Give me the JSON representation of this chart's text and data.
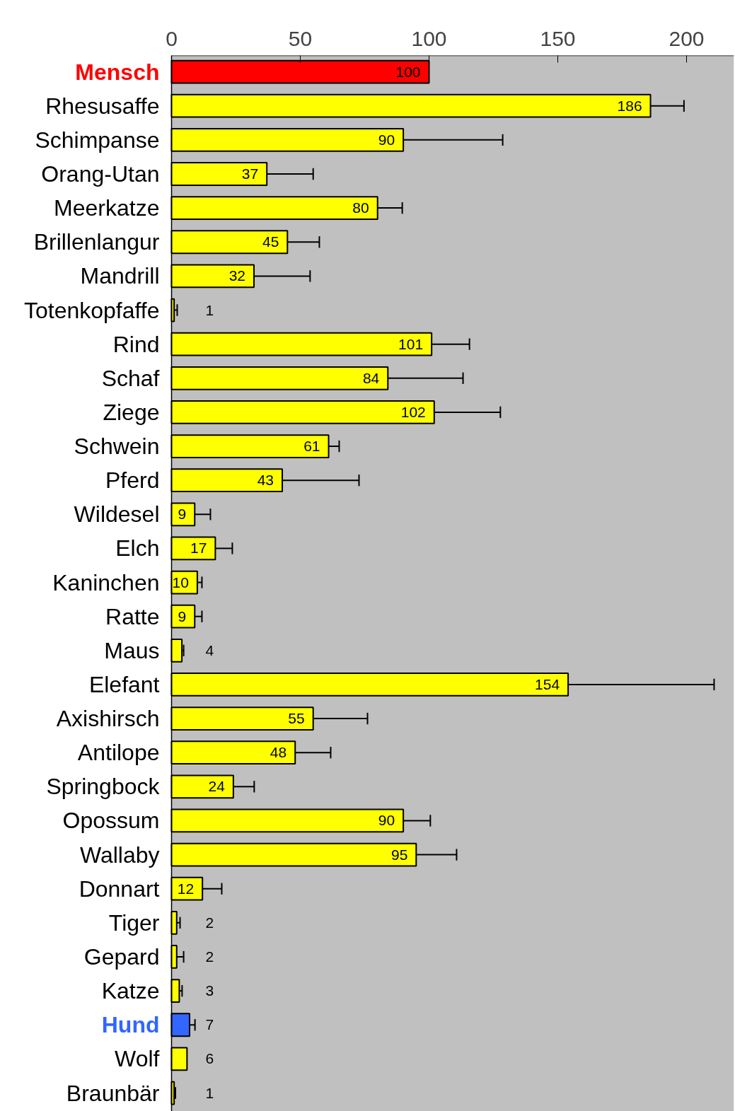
{
  "chart_data": {
    "type": "bar",
    "orientation": "horizontal",
    "categories": [
      "Mensch",
      "Rhesusaffe",
      "Schimpanse",
      "Orang-Utan",
      "Meerkatze",
      "Brillenlangur",
      "Mandrill",
      "Totenkopfaffe",
      "Rind",
      "Schaf",
      "Ziege",
      "Schwein",
      "Pferd",
      "Wildesel",
      "Elch",
      "Kaninchen",
      "Ratte",
      "Maus",
      "Elefant",
      "Axishirsch",
      "Antilope",
      "Springbock",
      "Opossum",
      "Wallaby",
      "Donnart",
      "Tiger",
      "Gepard",
      "Katze",
      "Hund",
      "Wolf",
      "Braunbär"
    ],
    "values": [
      100,
      186,
      90,
      37,
      80,
      45,
      32,
      1,
      101,
      84,
      102,
      61,
      43,
      9,
      17,
      10,
      9,
      4,
      154,
      55,
      48,
      24,
      90,
      95,
      12,
      2,
      2,
      3,
      7,
      6,
      1
    ],
    "colors": [
      "#ff0000",
      "#ffff00",
      "#ffff00",
      "#ffff00",
      "#ffff00",
      "#ffff00",
      "#ffff00",
      "#ffff00",
      "#ffff00",
      "#ffff00",
      "#ffff00",
      "#ffff00",
      "#ffff00",
      "#ffff00",
      "#ffff00",
      "#ffff00",
      "#ffff00",
      "#ffff00",
      "#ffff00",
      "#ffff00",
      "#ffff00",
      "#ffff00",
      "#ffff00",
      "#ffff00",
      "#ffff00",
      "#ffff00",
      "#ffff00",
      "#ffff00",
      "#3366ff",
      "#ffff00",
      "#ffff00"
    ],
    "errors": [
      null,
      [
        186,
        199
      ],
      [
        90,
        128.6
      ],
      [
        37,
        55
      ],
      [
        80,
        89.6
      ],
      [
        45,
        57.4
      ],
      [
        32,
        53.8
      ],
      [
        1,
        2.2
      ],
      [
        101,
        115.7
      ],
      [
        84,
        113.2
      ],
      [
        102,
        127.7
      ],
      [
        61,
        65.1
      ],
      [
        43,
        72.8
      ],
      [
        9,
        15.1
      ],
      [
        17,
        23.6
      ],
      [
        10,
        11.8
      ],
      [
        9,
        11.8
      ],
      [
        4,
        4.7
      ],
      [
        154,
        210.7
      ],
      [
        55,
        76.1
      ],
      [
        48,
        61.8
      ],
      [
        24,
        32.1
      ],
      [
        90,
        100.5
      ],
      [
        95,
        110.7
      ],
      [
        12,
        19.5
      ],
      [
        2,
        3.3
      ],
      [
        2,
        4.7
      ],
      [
        3,
        4.1
      ],
      [
        7,
        9.1
      ],
      null,
      [
        1,
        1.5
      ]
    ],
    "data_labels": true,
    "xlim": [
      0,
      218.4
    ],
    "xticks": [
      0,
      50,
      100,
      150,
      200
    ],
    "grid": false
  }
}
